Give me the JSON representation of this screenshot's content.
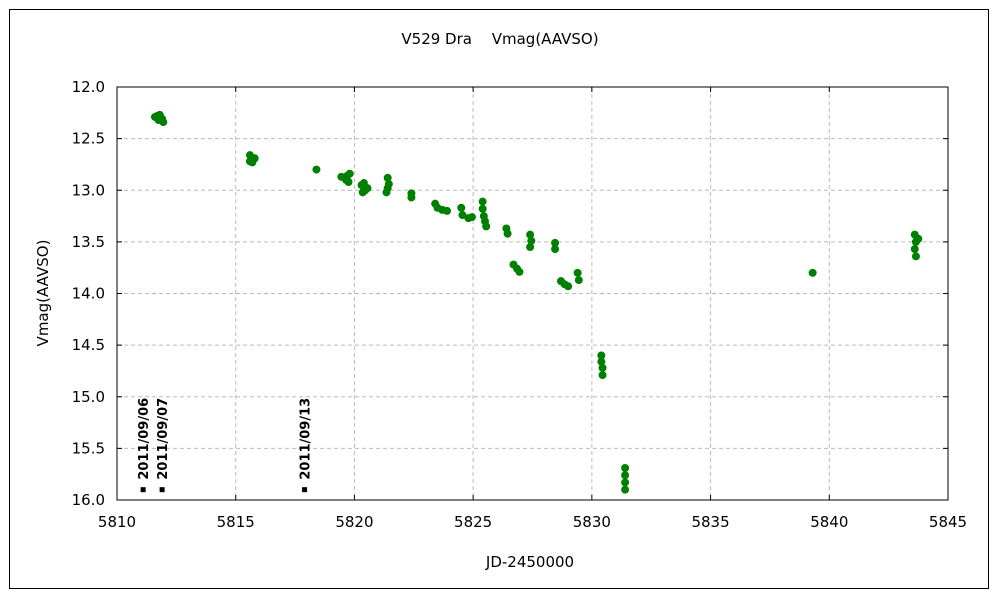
{
  "chart_data": {
    "type": "scatter",
    "title": "V529 Dra　 Vmag(AAVSO)",
    "xlabel": "JD-2450000",
    "ylabel": "Vmag(AAVSO)",
    "xlim": [
      5810,
      5845
    ],
    "ylim": [
      12.0,
      16.0
    ],
    "y_inverted": true,
    "xticks": [
      5810,
      5815,
      5820,
      5825,
      5830,
      5835,
      5840,
      5845
    ],
    "yticks": [
      "12.0",
      "12.5",
      "13.0",
      "13.5",
      "14.0",
      "14.5",
      "15.0",
      "15.5",
      "16.0"
    ],
    "grid": true,
    "marker_color": "#008000",
    "series": [
      {
        "name": "Vmag",
        "points": [
          [
            5811.6,
            12.29
          ],
          [
            5811.7,
            12.28
          ],
          [
            5811.8,
            12.27
          ],
          [
            5811.9,
            12.31
          ],
          [
            5811.95,
            12.34
          ],
          [
            5811.75,
            12.32
          ],
          [
            5815.6,
            12.66
          ],
          [
            5815.65,
            12.7
          ],
          [
            5815.7,
            12.73
          ],
          [
            5815.8,
            12.69
          ],
          [
            5815.6,
            12.72
          ],
          [
            5818.4,
            12.8
          ],
          [
            5819.45,
            12.87
          ],
          [
            5819.7,
            12.86
          ],
          [
            5819.75,
            12.92
          ],
          [
            5819.65,
            12.9
          ],
          [
            5819.8,
            12.84
          ],
          [
            5820.3,
            12.95
          ],
          [
            5820.4,
            12.93
          ],
          [
            5820.45,
            13.0
          ],
          [
            5820.55,
            12.98
          ],
          [
            5820.35,
            13.02
          ],
          [
            5821.4,
            12.88
          ],
          [
            5821.45,
            12.94
          ],
          [
            5821.4,
            12.98
          ],
          [
            5821.35,
            13.02
          ],
          [
            5822.4,
            13.03
          ],
          [
            5822.4,
            13.07
          ],
          [
            5823.4,
            13.13
          ],
          [
            5823.5,
            13.17
          ],
          [
            5823.7,
            13.19
          ],
          [
            5823.9,
            13.2
          ],
          [
            5824.5,
            13.17
          ],
          [
            5824.55,
            13.24
          ],
          [
            5824.8,
            13.27
          ],
          [
            5824.95,
            13.26
          ],
          [
            5825.4,
            13.11
          ],
          [
            5825.4,
            13.18
          ],
          [
            5825.45,
            13.25
          ],
          [
            5825.5,
            13.3
          ],
          [
            5825.55,
            13.35
          ],
          [
            5826.4,
            13.37
          ],
          [
            5826.45,
            13.42
          ],
          [
            5826.7,
            13.72
          ],
          [
            5826.85,
            13.76
          ],
          [
            5826.95,
            13.79
          ],
          [
            5827.4,
            13.43
          ],
          [
            5827.45,
            13.49
          ],
          [
            5827.4,
            13.55
          ],
          [
            5828.45,
            13.51
          ],
          [
            5828.45,
            13.57
          ],
          [
            5828.7,
            13.88
          ],
          [
            5828.85,
            13.91
          ],
          [
            5829.0,
            13.93
          ],
          [
            5829.4,
            13.8
          ],
          [
            5829.45,
            13.87
          ],
          [
            5830.4,
            14.6
          ],
          [
            5830.4,
            14.66
          ],
          [
            5830.45,
            14.72
          ],
          [
            5830.45,
            14.79
          ],
          [
            5831.4,
            15.69
          ],
          [
            5831.4,
            15.76
          ],
          [
            5831.4,
            15.83
          ],
          [
            5831.4,
            15.9
          ],
          [
            5839.3,
            13.8
          ],
          [
            5843.6,
            13.43
          ],
          [
            5843.65,
            13.5
          ],
          [
            5843.6,
            13.57
          ],
          [
            5843.65,
            13.64
          ],
          [
            5843.75,
            13.47
          ]
        ]
      }
    ],
    "annotations": [
      {
        "text": "2011/09/06",
        "x": 5811.1,
        "y": 15.9
      },
      {
        "text": "2011/09/07",
        "x": 5811.9,
        "y": 15.9
      },
      {
        "text": "2011/09/13",
        "x": 5817.9,
        "y": 15.9
      }
    ]
  }
}
